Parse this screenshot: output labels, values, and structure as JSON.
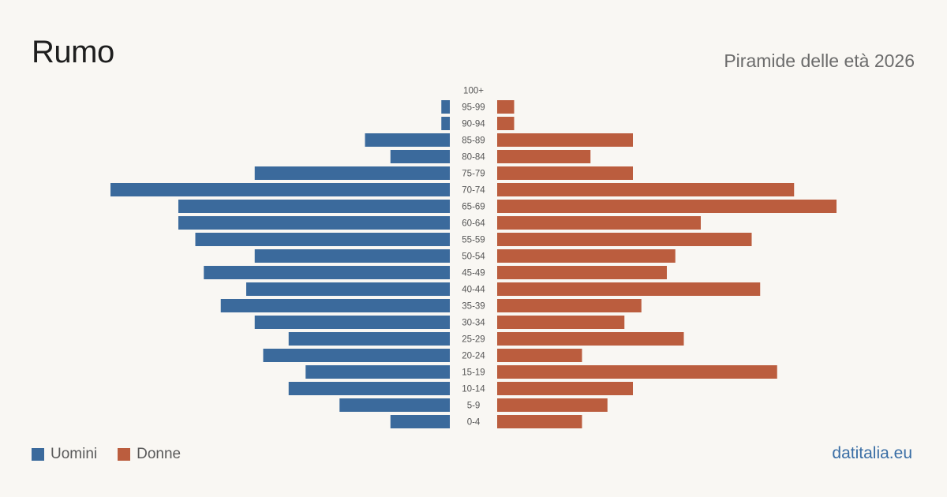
{
  "header": {
    "title": "Rumo",
    "subtitle": "Piramide delle età 2026"
  },
  "legend": {
    "men_label": "Uomini",
    "women_label": "Donne"
  },
  "footer": {
    "brand": "datitalia.eu"
  },
  "colors": {
    "men": "#3b6a9c",
    "women": "#bb5d3e",
    "background": "#f9f7f3",
    "label_text": "#555555"
  },
  "chart_data": {
    "type": "bar",
    "orientation": "horizontal-population-pyramid",
    "categories": [
      "100+",
      "95-99",
      "90-94",
      "85-89",
      "80-84",
      "75-79",
      "70-74",
      "65-69",
      "60-64",
      "55-59",
      "50-54",
      "45-49",
      "40-44",
      "35-39",
      "30-34",
      "25-29",
      "20-24",
      "15-19",
      "10-14",
      "5-9",
      "0-4"
    ],
    "series": [
      {
        "name": "Uomini",
        "side": "left",
        "values": [
          0,
          1,
          1,
          10,
          7,
          23,
          40,
          32,
          32,
          30,
          23,
          29,
          24,
          27,
          23,
          19,
          22,
          17,
          19,
          13,
          7
        ]
      },
      {
        "name": "Donne",
        "side": "right",
        "values": [
          0,
          2,
          2,
          16,
          11,
          16,
          35,
          40,
          24,
          30,
          21,
          20,
          31,
          17,
          15,
          22,
          10,
          33,
          16,
          13,
          10
        ]
      }
    ],
    "xlim": [
      0,
      40
    ],
    "grid": false,
    "legend_position": "bottom-left"
  }
}
